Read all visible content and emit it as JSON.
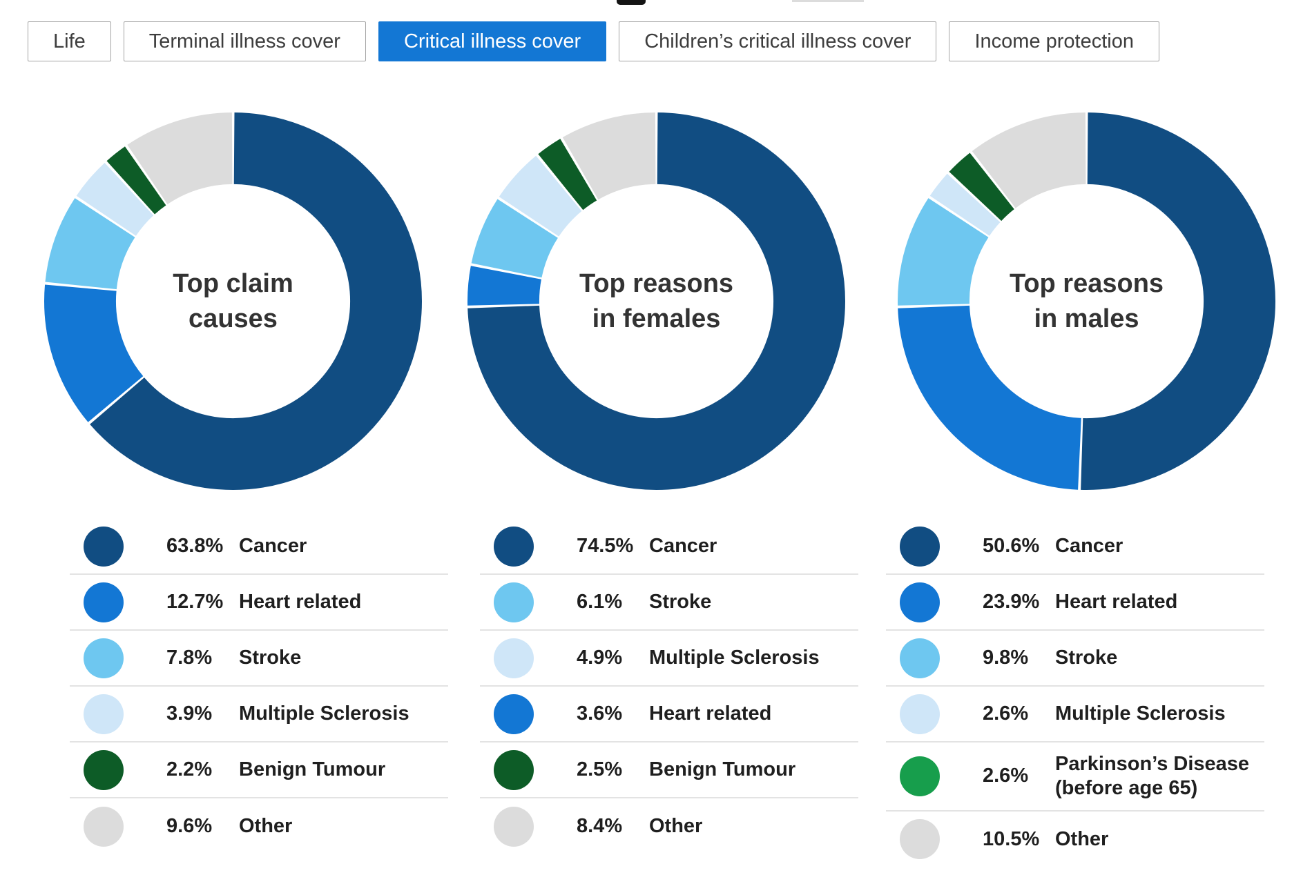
{
  "tabs": [
    {
      "label": "Life",
      "active": false
    },
    {
      "label": "Terminal illness cover",
      "active": false
    },
    {
      "label": "Critical illness cover",
      "active": true
    },
    {
      "label": "Children’s critical illness cover",
      "active": false
    },
    {
      "label": "Income protection",
      "active": false
    }
  ],
  "palette": {
    "dark_blue": "#114d82",
    "bright_blue": "#1377d4",
    "sky_blue": "#6ec7f0",
    "pale_blue": "#cfe6f8",
    "dark_green": "#0d5c27",
    "bright_green": "#179e4c",
    "gray": "#dcdcdc"
  },
  "chart_data": [
    {
      "type": "donut",
      "title": "Top claim causes",
      "center_lines": [
        "Top claim",
        "causes"
      ],
      "slices": [
        {
          "label": "Cancer",
          "pct_label": "63.8%",
          "value": 63.8,
          "color": "dark_blue"
        },
        {
          "label": "Heart related",
          "pct_label": "12.7%",
          "value": 12.7,
          "color": "bright_blue"
        },
        {
          "label": "Stroke",
          "pct_label": "7.8%",
          "value": 7.8,
          "color": "sky_blue"
        },
        {
          "label": "Multiple Sclerosis",
          "pct_label": "3.9%",
          "value": 3.9,
          "color": "pale_blue"
        },
        {
          "label": "Benign Tumour",
          "pct_label": "2.2%",
          "value": 2.2,
          "color": "dark_green"
        },
        {
          "label": "Other",
          "pct_label": "9.6%",
          "value": 9.6,
          "color": "gray"
        }
      ],
      "legend_order": [
        0,
        1,
        2,
        3,
        4,
        5
      ]
    },
    {
      "type": "donut",
      "title": "Top reasons in females",
      "center_lines": [
        "Top reasons",
        "in females"
      ],
      "slices": [
        {
          "label": "Cancer",
          "pct_label": "74.5%",
          "value": 74.5,
          "color": "dark_blue"
        },
        {
          "label": "Heart related",
          "pct_label": "3.6%",
          "value": 3.6,
          "color": "bright_blue"
        },
        {
          "label": "Stroke",
          "pct_label": "6.1%",
          "value": 6.1,
          "color": "sky_blue"
        },
        {
          "label": "Multiple Sclerosis",
          "pct_label": "4.9%",
          "value": 4.9,
          "color": "pale_blue"
        },
        {
          "label": "Benign Tumour",
          "pct_label": "2.5%",
          "value": 2.5,
          "color": "dark_green"
        },
        {
          "label": "Other",
          "pct_label": "8.4%",
          "value": 8.4,
          "color": "gray"
        }
      ],
      "legend_order": [
        0,
        2,
        3,
        1,
        4,
        5
      ]
    },
    {
      "type": "donut",
      "title": "Top reasons in males",
      "center_lines": [
        "Top reasons",
        "in males"
      ],
      "slices": [
        {
          "label": "Cancer",
          "pct_label": "50.6%",
          "value": 50.6,
          "color": "dark_blue"
        },
        {
          "label": "Heart related",
          "pct_label": "23.9%",
          "value": 23.9,
          "color": "bright_blue"
        },
        {
          "label": "Stroke",
          "pct_label": "9.8%",
          "value": 9.8,
          "color": "sky_blue"
        },
        {
          "label": "Multiple Sclerosis",
          "pct_label": "2.6%",
          "value": 2.6,
          "color": "pale_blue"
        },
        {
          "label": "Parkinson’s Disease (before age 65)",
          "pct_label": "2.6%",
          "value": 2.6,
          "color": "dark_green",
          "legend_dot_color": "bright_green"
        },
        {
          "label": "Other",
          "pct_label": "10.5%",
          "value": 10.5,
          "color": "gray"
        }
      ],
      "legend_order": [
        0,
        1,
        2,
        3,
        4,
        5
      ]
    }
  ]
}
